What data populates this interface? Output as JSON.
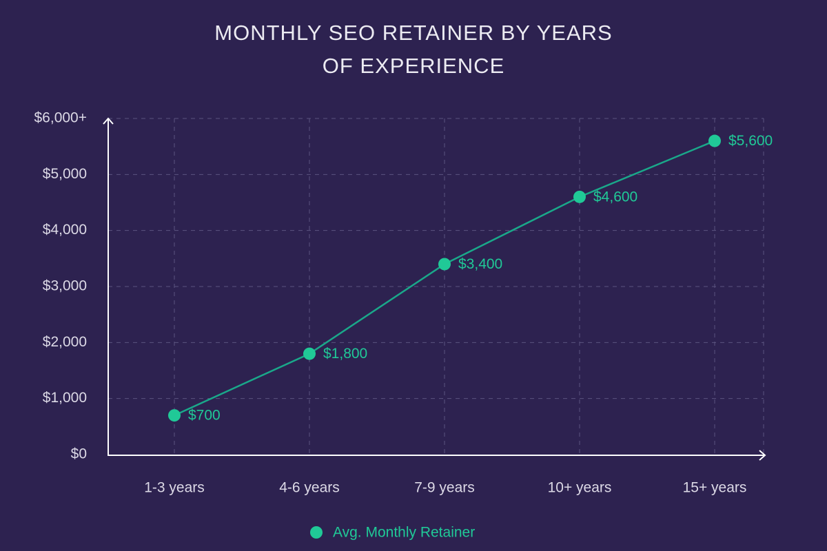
{
  "chart_data": {
    "type": "line",
    "title": "MONTHLY SEO RETAINER BY YEARS OF EXPERIENCE",
    "categories": [
      "1-3 years",
      "4-6 years",
      "7-9 years",
      "10+ years",
      "15+ years"
    ],
    "series": [
      {
        "name": "Avg. Monthly Retainer",
        "color": "#20c997",
        "line_color": "#1aa88a",
        "values": [
          700,
          1800,
          3400,
          4600,
          5600
        ],
        "value_labels": [
          "$700",
          "$1,800",
          "$3,400",
          "$4,600",
          "$5,600"
        ]
      }
    ],
    "ylim": [
      0,
      6000
    ],
    "yticks": [
      {
        "value": 0,
        "label": "$0"
      },
      {
        "value": 1000,
        "label": "$1,000"
      },
      {
        "value": 2000,
        "label": "$2,000"
      },
      {
        "value": 3000,
        "label": "$3,000"
      },
      {
        "value": 4000,
        "label": "$4,000"
      },
      {
        "value": 5000,
        "label": "$5,000"
      },
      {
        "value": 6000,
        "label": "$6,000+"
      }
    ],
    "grid": true,
    "legend": "bottom"
  }
}
